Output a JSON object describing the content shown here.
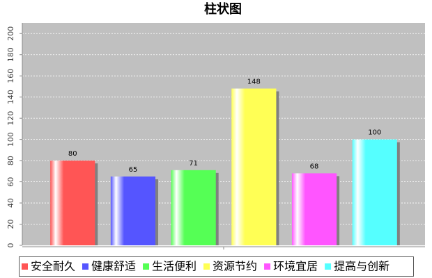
{
  "chart_data": {
    "type": "bar",
    "title": "柱状图",
    "categories": [
      null
    ],
    "series": [
      {
        "name": "安全耐久",
        "color": "#ff5555",
        "values": [
          80
        ]
      },
      {
        "name": "健康舒适",
        "color": "#5555ff",
        "values": [
          65
        ]
      },
      {
        "name": "生活便利",
        "color": "#55ff55",
        "values": [
          71
        ]
      },
      {
        "name": "资源节约",
        "color": "#ffff55",
        "values": [
          148
        ]
      },
      {
        "name": "环境宜居",
        "color": "#ff55ff",
        "values": [
          68
        ]
      },
      {
        "name": "提高与创新",
        "color": "#55ffff",
        "values": [
          100
        ]
      }
    ],
    "ylim": [
      0,
      210
    ],
    "yticks": [
      0,
      20,
      40,
      60,
      80,
      100,
      120,
      140,
      160,
      180,
      200
    ],
    "grid": true,
    "legend": "bottom"
  }
}
